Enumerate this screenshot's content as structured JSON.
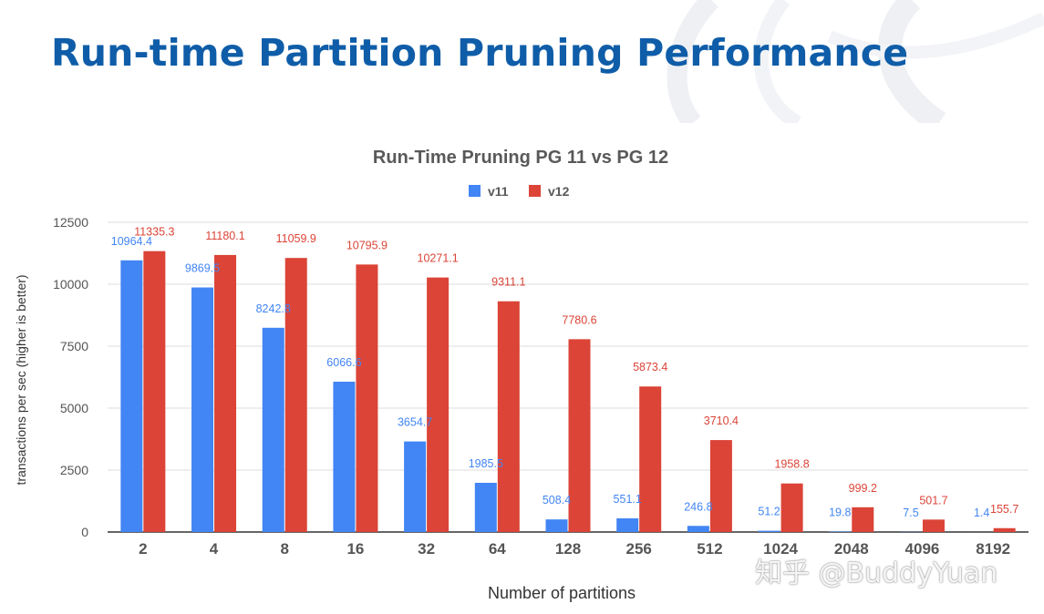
{
  "slide": {
    "title": "Run-time Partition Pruning Performance"
  },
  "watermark": "知乎 @BuddyYuan",
  "colors": {
    "title": "#0f5da8",
    "v11": "#4285f4",
    "v12": "#db4437",
    "axis_text": "#555555",
    "grid": "#dddddd"
  },
  "chart_data": {
    "type": "bar",
    "title": "Run-Time Pruning PG 11 vs PG 12",
    "xlabel": "Number of partitions",
    "ylabel": "transactions per sec (higher is better)",
    "categories": [
      "2",
      "4",
      "8",
      "16",
      "32",
      "64",
      "128",
      "256",
      "512",
      "1024",
      "2048",
      "4096",
      "8192"
    ],
    "series": [
      {
        "name": "v11",
        "color": "#4285f4",
        "values": [
          10964.4,
          9869.5,
          8242.8,
          6066.6,
          3654.7,
          1985.5,
          508.4,
          551.1,
          246.8,
          51.2,
          19.8,
          7.5,
          1.4
        ]
      },
      {
        "name": "v12",
        "color": "#db4437",
        "values": [
          11335.3,
          11180.1,
          11059.9,
          10795.9,
          10271.1,
          9311.1,
          7780.6,
          5873.4,
          3710.4,
          1958.8,
          999.2,
          501.7,
          155.7
        ]
      }
    ],
    "ylim": [
      0,
      12500
    ],
    "yticks": [
      0,
      2500,
      5000,
      7500,
      10000,
      12500
    ],
    "grid": true,
    "legend": "top-center"
  }
}
